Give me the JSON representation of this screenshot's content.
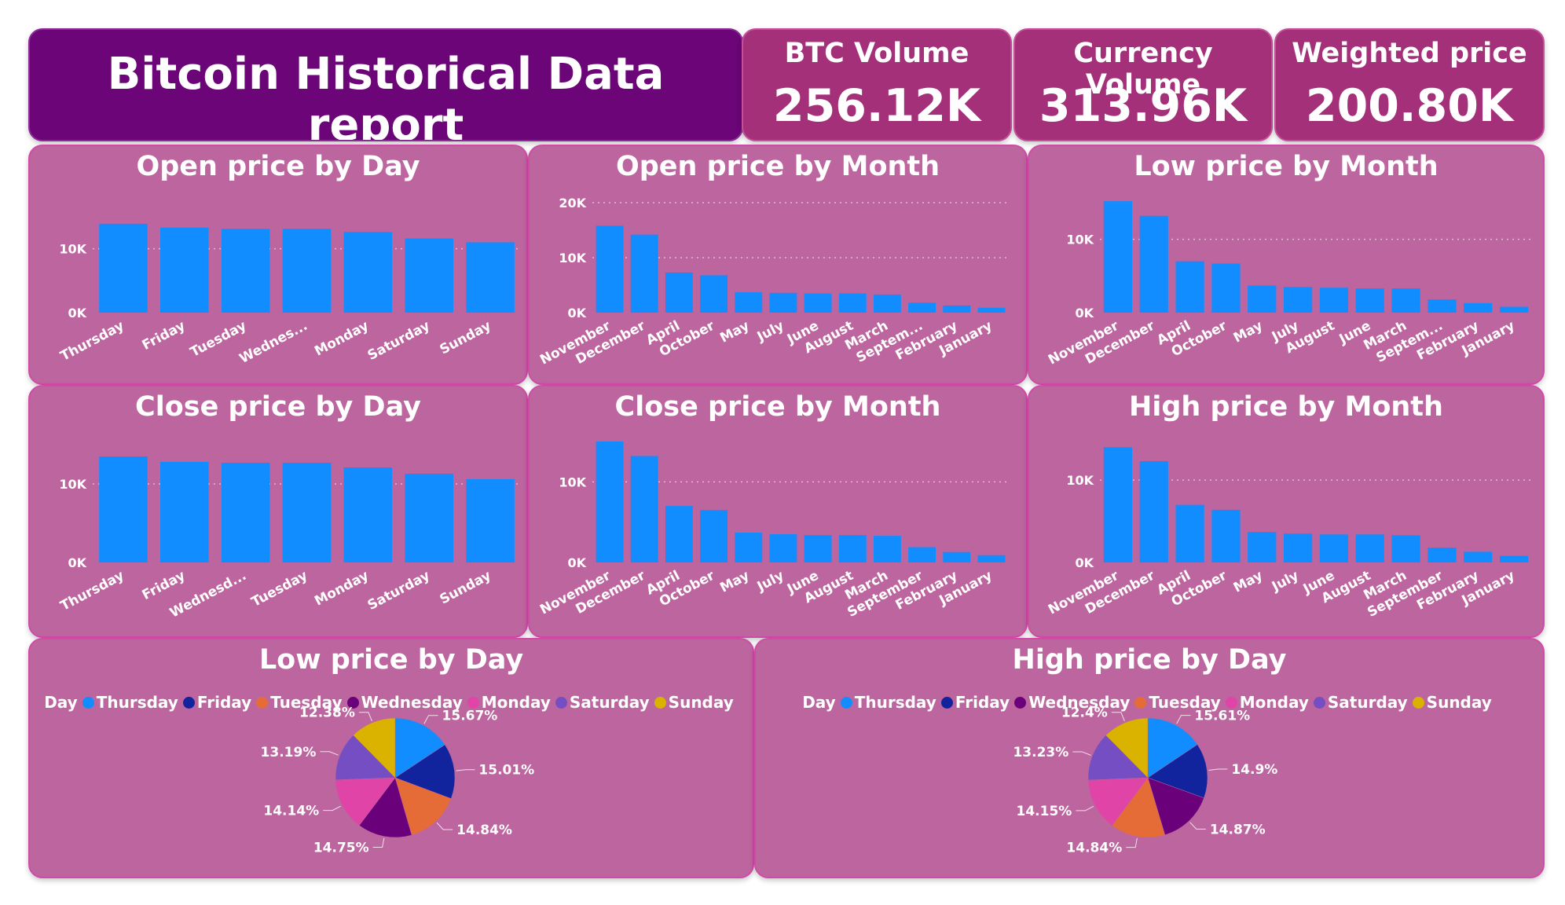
{
  "header": {
    "title": "Bitcoin Historical Data report"
  },
  "kpis": [
    {
      "label": "BTC Volume",
      "value": "256.12K"
    },
    {
      "label": "Currency Volume",
      "value": "313.96K"
    },
    {
      "label": "Weighted price",
      "value": "200.80K"
    }
  ],
  "colors": {
    "bar": "#118dff",
    "panel": "#bd659f",
    "title_panel": "#6c0578",
    "kpi_panel": "#a5307a"
  },
  "chart_data": [
    {
      "id": "open_day",
      "type": "bar",
      "title": "Open price by Day",
      "categories": [
        "Thursday",
        "Friday",
        "Tuesday",
        "Wednes...",
        "Monday",
        "Saturday",
        "Sunday"
      ],
      "values": [
        13900,
        13300,
        13100,
        13100,
        12600,
        11600,
        11000
      ],
      "ylim": [
        0,
        14000
      ],
      "yticks": [
        {
          "v": 0,
          "label": "0K"
        },
        {
          "v": 10000,
          "label": "10K"
        }
      ],
      "grid": true
    },
    {
      "id": "open_month",
      "type": "bar",
      "title": "Open price by Month",
      "categories": [
        "November",
        "December",
        "April",
        "October",
        "May",
        "July",
        "June",
        "August",
        "March",
        "Septem...",
        "February",
        "January"
      ],
      "values": [
        15800,
        14200,
        7300,
        6800,
        3700,
        3600,
        3500,
        3500,
        3300,
        1800,
        1300,
        900
      ],
      "ylim": [
        0,
        20000
      ],
      "yticks": [
        {
          "v": 0,
          "label": "0K"
        },
        {
          "v": 10000,
          "label": "10K"
        },
        {
          "v": 20000,
          "label": "20K"
        }
      ],
      "grid": true
    },
    {
      "id": "low_month",
      "type": "bar",
      "title": "Low price by Month",
      "categories": [
        "November",
        "December",
        "April",
        "October",
        "May",
        "July",
        "August",
        "June",
        "March",
        "Septem...",
        "February",
        "January"
      ],
      "values": [
        15200,
        13200,
        7000,
        6700,
        3700,
        3500,
        3400,
        3300,
        3300,
        1800,
        1300,
        800
      ],
      "ylim": [
        0,
        15000
      ],
      "yticks": [
        {
          "v": 0,
          "label": "0K"
        },
        {
          "v": 10000,
          "label": "10K"
        }
      ],
      "grid": true
    },
    {
      "id": "close_day",
      "type": "bar",
      "title": "Close price by Day",
      "categories": [
        "Thursday",
        "Friday",
        "Wednesd...",
        "Tuesday",
        "Monday",
        "Saturday",
        "Sunday"
      ],
      "values": [
        13500,
        12800,
        12700,
        12700,
        12100,
        11300,
        10600
      ],
      "ylim": [
        0,
        14000
      ],
      "yticks": [
        {
          "v": 0,
          "label": "0K"
        },
        {
          "v": 10000,
          "label": "10K"
        }
      ],
      "grid": true
    },
    {
      "id": "close_month",
      "type": "bar",
      "title": "Close price by Month",
      "categories": [
        "November",
        "December",
        "April",
        "October",
        "May",
        "July",
        "June",
        "August",
        "March",
        "September",
        "February",
        "January"
      ],
      "values": [
        15000,
        13200,
        7000,
        6500,
        3700,
        3500,
        3400,
        3400,
        3300,
        1900,
        1300,
        900
      ],
      "ylim": [
        0,
        15000
      ],
      "yticks": [
        {
          "v": 0,
          "label": "0K"
        },
        {
          "v": 10000,
          "label": "10K"
        }
      ],
      "grid": true
    },
    {
      "id": "high_month",
      "type": "bar",
      "title": "High price by Month",
      "categories": [
        "November",
        "December",
        "April",
        "October",
        "May",
        "July",
        "June",
        "August",
        "March",
        "September",
        "February",
        "January"
      ],
      "values": [
        14000,
        12300,
        7000,
        6400,
        3700,
        3500,
        3400,
        3400,
        3300,
        1800,
        1300,
        800
      ],
      "ylim": [
        0,
        14500
      ],
      "yticks": [
        {
          "v": 0,
          "label": "0K"
        },
        {
          "v": 10000,
          "label": "10K"
        }
      ],
      "grid": true
    },
    {
      "id": "low_day",
      "type": "pie",
      "title": "Low price by Day",
      "legend_title": "Day",
      "legend_position": "top",
      "legend": [
        {
          "name": "Thursday",
          "color": "#118dff"
        },
        {
          "name": "Friday",
          "color": "#12239e"
        },
        {
          "name": "Tuesday",
          "color": "#e66c37"
        },
        {
          "name": "Wednesday",
          "color": "#6b007b"
        },
        {
          "name": "Monday",
          "color": "#e044a7"
        },
        {
          "name": "Saturday",
          "color": "#744ec2"
        },
        {
          "name": "Sunday",
          "color": "#d9b300"
        }
      ],
      "slices": [
        {
          "name": "Thursday",
          "value": 15.67,
          "label": "15.67%"
        },
        {
          "name": "Friday",
          "value": 15.01,
          "label": "15.01%"
        },
        {
          "name": "Tuesday",
          "value": 14.84,
          "label": "14.84%"
        },
        {
          "name": "Wednesday",
          "value": 14.75,
          "label": "14.75%"
        },
        {
          "name": "Monday",
          "value": 14.14,
          "label": "14.14%"
        },
        {
          "name": "Saturday",
          "value": 13.19,
          "label": "13.19%"
        },
        {
          "name": "Sunday",
          "value": 12.38,
          "label": "12.38%"
        }
      ]
    },
    {
      "id": "high_day",
      "type": "pie",
      "title": "High price by Day",
      "legend_title": "Day",
      "legend_position": "top",
      "legend": [
        {
          "name": "Thursday",
          "color": "#118dff"
        },
        {
          "name": "Friday",
          "color": "#12239e"
        },
        {
          "name": "Wednesday",
          "color": "#6b007b"
        },
        {
          "name": "Tuesday",
          "color": "#e66c37"
        },
        {
          "name": "Monday",
          "color": "#e044a7"
        },
        {
          "name": "Saturday",
          "color": "#744ec2"
        },
        {
          "name": "Sunday",
          "color": "#d9b300"
        }
      ],
      "slices": [
        {
          "name": "Thursday",
          "value": 15.61,
          "label": "15.61%"
        },
        {
          "name": "Friday",
          "value": 14.9,
          "label": "14.9%"
        },
        {
          "name": "Wednesday",
          "value": 14.87,
          "label": "14.87%"
        },
        {
          "name": "Tuesday",
          "value": 14.84,
          "label": "14.84%"
        },
        {
          "name": "Monday",
          "value": 14.15,
          "label": "14.15%"
        },
        {
          "name": "Saturday",
          "value": 13.23,
          "label": "13.23%"
        },
        {
          "name": "Sunday",
          "value": 12.4,
          "label": "12.4%"
        }
      ]
    }
  ]
}
